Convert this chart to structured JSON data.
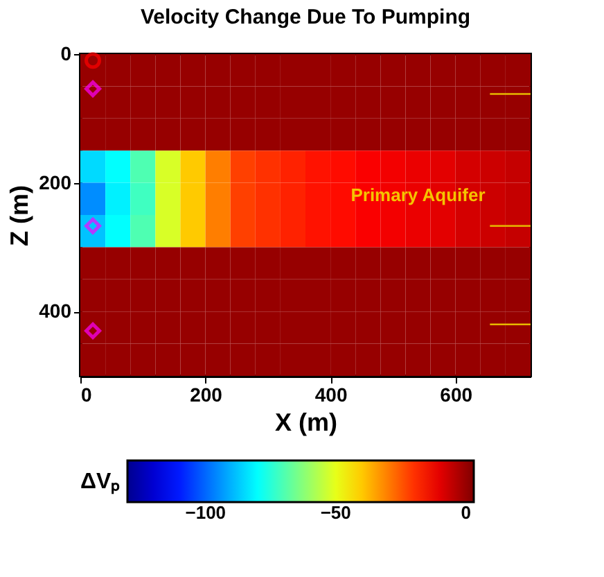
{
  "chart_data": {
    "type": "heatmap",
    "title": "Velocity Change Due To Pumping",
    "xlabel": "X (m)",
    "ylabel": "Z (m)",
    "clabel": "ΔVₚ",
    "x": [
      20,
      60,
      100,
      140,
      180,
      220,
      260,
      300,
      340,
      380,
      420,
      460,
      500,
      540,
      580,
      620,
      660,
      700
    ],
    "y": [
      25,
      75,
      125,
      175,
      225,
      275,
      325,
      375,
      425,
      475
    ],
    "cells": [
      [
        0,
        0,
        0,
        0,
        0,
        0,
        0,
        0,
        0,
        0,
        0,
        0,
        0,
        0,
        0,
        0,
        0,
        0
      ],
      [
        0,
        0,
        0,
        0,
        0,
        0,
        0,
        0,
        0,
        0,
        0,
        0,
        0,
        0,
        0,
        0,
        0,
        0
      ],
      [
        0,
        0,
        0,
        0,
        0,
        0,
        0,
        0,
        0,
        0,
        0,
        0,
        0,
        0,
        0,
        0,
        0,
        0
      ],
      [
        -85,
        -80,
        -70,
        -52,
        -40,
        -30,
        -22,
        -20,
        -18,
        -16,
        -15,
        -13,
        -12,
        -11,
        -10,
        -8,
        -7,
        -6
      ],
      [
        -95,
        -82,
        -72,
        -52,
        -40,
        -30,
        -22,
        -20,
        -18,
        -16,
        -15,
        -13,
        -12,
        -11,
        -10,
        -8,
        -7,
        -6
      ],
      [
        -88,
        -80,
        -70,
        -52,
        -40,
        -30,
        -22,
        -20,
        -18,
        -16,
        -15,
        -13,
        -12,
        -11,
        -10,
        -8,
        -7,
        -6
      ],
      [
        0,
        0,
        0,
        0,
        0,
        0,
        0,
        0,
        0,
        0,
        0,
        0,
        0,
        0,
        0,
        0,
        0,
        0
      ],
      [
        0,
        0,
        0,
        0,
        0,
        0,
        0,
        0,
        0,
        0,
        0,
        0,
        0,
        0,
        0,
        0,
        0,
        0
      ],
      [
        0,
        0,
        0,
        0,
        0,
        0,
        0,
        0,
        0,
        0,
        0,
        0,
        0,
        0,
        0,
        0,
        0,
        0
      ],
      [
        0,
        0,
        0,
        0,
        0,
        0,
        0,
        0,
        0,
        0,
        0,
        0,
        0,
        0,
        0,
        0,
        0,
        0
      ]
    ],
    "clim": [
      -130,
      3
    ],
    "cticks": [
      -100,
      -50,
      0
    ],
    "xlim": [
      0,
      720
    ],
    "xticks": [
      0,
      200,
      400,
      600
    ],
    "ylim": [
      500,
      0
    ],
    "yticks": [
      0,
      200,
      400
    ],
    "grid": false,
    "series": [
      {
        "type": "scatter",
        "marker": "circle",
        "color": "#ff0000",
        "x": [
          20
        ],
        "values": [
          10
        ]
      },
      {
        "type": "scatter",
        "marker": "diamond",
        "color": "#ff00ff",
        "x": [
          20,
          20,
          20
        ],
        "values": [
          54,
          267,
          430
        ]
      },
      {
        "type": "line",
        "color": "#e6b800",
        "x": [
          655,
          720
        ],
        "values": [
          62,
          62
        ]
      },
      {
        "type": "line",
        "color": "#e6b800",
        "x": [
          655,
          720
        ],
        "values": [
          267,
          267
        ]
      },
      {
        "type": "line",
        "color": "#e6b800",
        "x": [
          655,
          720
        ],
        "values": [
          420,
          420
        ]
      }
    ],
    "annotations": [
      "Primary Aquifer"
    ]
  }
}
